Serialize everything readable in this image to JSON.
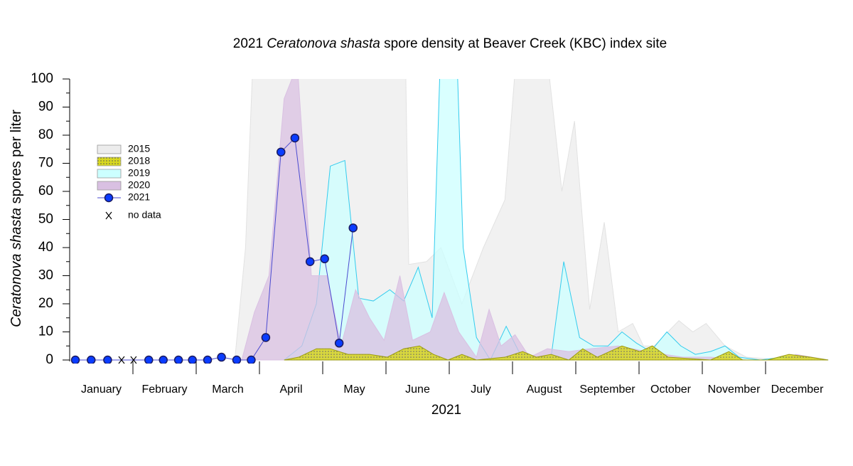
{
  "chart_data": {
    "type": "area",
    "title": {
      "prefix": "2021 ",
      "italic": "Ceratonova shasta",
      "suffix": " spore density at Beaver Creek (KBC) index site"
    },
    "y_label": {
      "italic": "Ceratonova shasta",
      "suffix": " spores per liter"
    },
    "x_label": "2021",
    "categories": [
      "January",
      "February",
      "March",
      "April",
      "May",
      "June",
      "July",
      "August",
      "September",
      "October",
      "November",
      "December"
    ],
    "xlim": [
      0,
      12
    ],
    "ylim": [
      0,
      100
    ],
    "yticks": [
      0,
      10,
      20,
      30,
      40,
      50,
      60,
      70,
      80,
      90,
      100
    ],
    "series": [
      {
        "name": "2015",
        "kind": "area",
        "color": "#ececec",
        "stroke": "#e2e2e2",
        "x": [
          2.61,
          2.78,
          2.92,
          5.3,
          5.36,
          5.64,
          5.87,
          6.2,
          6.54,
          6.88,
          7.1,
          7.49,
          7.78,
          7.98,
          8.22,
          8.45,
          8.67,
          8.9,
          9.07,
          9.24,
          9.63,
          9.85,
          10.06,
          10.36,
          10.7,
          11.26,
          11.99
        ],
        "values": [
          0,
          40,
          120,
          120,
          34,
          35,
          40,
          20,
          40,
          57,
          120,
          120,
          60,
          85,
          18,
          49,
          10,
          13,
          5,
          5,
          14,
          10,
          13,
          5,
          1,
          0,
          0
        ]
      },
      {
        "name": "2018",
        "kind": "area",
        "color": "#d8d820",
        "stroke": "#9a9a10",
        "hatch": "dots",
        "x": [
          3.39,
          3.62,
          3.9,
          4.12,
          4.4,
          4.74,
          5.02,
          5.28,
          5.53,
          5.75,
          5.98,
          6.2,
          6.43,
          6.88,
          7.16,
          7.38,
          7.61,
          7.89,
          8.11,
          8.34,
          8.73,
          9.01,
          9.21,
          9.46,
          10.13,
          10.42,
          10.64,
          11.03,
          11.37,
          11.71,
          11.99
        ],
        "values": [
          0,
          1,
          4,
          4,
          2,
          2,
          1,
          4,
          5,
          2,
          0,
          2,
          0,
          1,
          3,
          1,
          2,
          0,
          4,
          1,
          5,
          3,
          5,
          1,
          0,
          3,
          0,
          0,
          2,
          1,
          0
        ]
      },
      {
        "name": "2019",
        "kind": "area",
        "color": "#ccffff",
        "stroke": "#33ccee",
        "x": [
          3.39,
          3.67,
          3.9,
          4.12,
          4.35,
          4.57,
          4.8,
          5.06,
          5.28,
          5.51,
          5.73,
          5.89,
          6.09,
          6.22,
          6.43,
          6.65,
          6.9,
          7.1,
          7.33,
          7.61,
          7.81,
          8.06,
          8.28,
          8.51,
          8.73,
          8.96,
          9.18,
          9.44,
          9.66,
          9.89,
          10.13,
          10.36,
          10.58,
          10.92,
          11.26,
          11.71,
          11.99
        ],
        "values": [
          0,
          5,
          20,
          69,
          71,
          22,
          21,
          25,
          21,
          33,
          15,
          130,
          130,
          40,
          8,
          0,
          12,
          3,
          1,
          1,
          35,
          8,
          5,
          5,
          10,
          6,
          3,
          10,
          5,
          2,
          3,
          5,
          1,
          0,
          1,
          1,
          0
        ]
      },
      {
        "name": "2020",
        "kind": "area",
        "color": "#d9c0e2",
        "stroke": "#d9c0e2",
        "x": [
          2.72,
          2.92,
          3.15,
          3.39,
          3.6,
          3.82,
          4.07,
          4.29,
          4.52,
          4.74,
          4.97,
          5.22,
          5.42,
          5.7,
          5.92,
          6.15,
          6.43,
          6.63,
          6.82,
          7.04,
          7.27,
          7.55,
          7.89,
          8.22,
          8.67,
          9.12,
          9.69,
          10.13,
          10.7,
          11.26,
          11.48,
          11.99
        ],
        "values": [
          0,
          17,
          30,
          93,
          105,
          30,
          30,
          5,
          25,
          15,
          7,
          30,
          7,
          10,
          24,
          10,
          1,
          18,
          5,
          9,
          1,
          4,
          3,
          4,
          5,
          3,
          1,
          1,
          0,
          0,
          2,
          0
        ]
      },
      {
        "name": "2021",
        "kind": "line",
        "color": "#0a3cff",
        "stroke": "#4a4ad0",
        "x": [
          0.09,
          0.34,
          0.6,
          1.25,
          1.48,
          1.72,
          1.94,
          2.18,
          2.4,
          2.64,
          2.87,
          3.1,
          3.34,
          3.56,
          3.8,
          4.03,
          4.26,
          4.48
        ],
        "values": [
          0,
          0,
          0,
          0,
          0,
          0,
          0,
          0,
          1,
          0,
          0,
          8,
          74,
          79,
          35,
          36,
          6,
          47
        ]
      }
    ],
    "no_data": {
      "label": "no data",
      "x": [
        0.82,
        1.01
      ]
    }
  }
}
